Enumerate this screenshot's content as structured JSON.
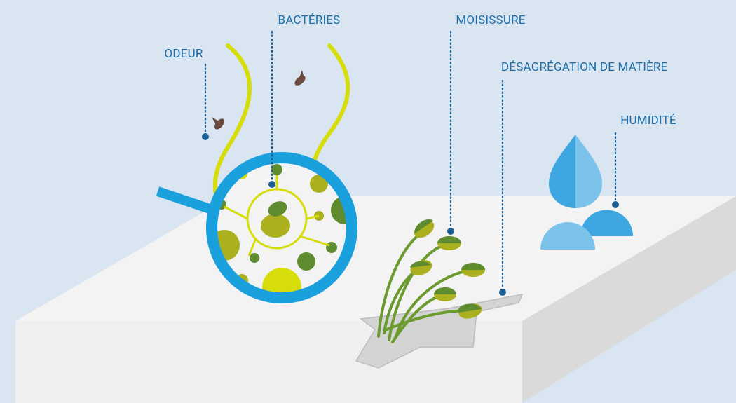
{
  "labels": [
    "ODEUR",
    "BACTÉRIES",
    "MOISISSURE",
    "DÉSAGRÉGATION DE MATIÈRE",
    "HUMIDITÉ"
  ]
}
